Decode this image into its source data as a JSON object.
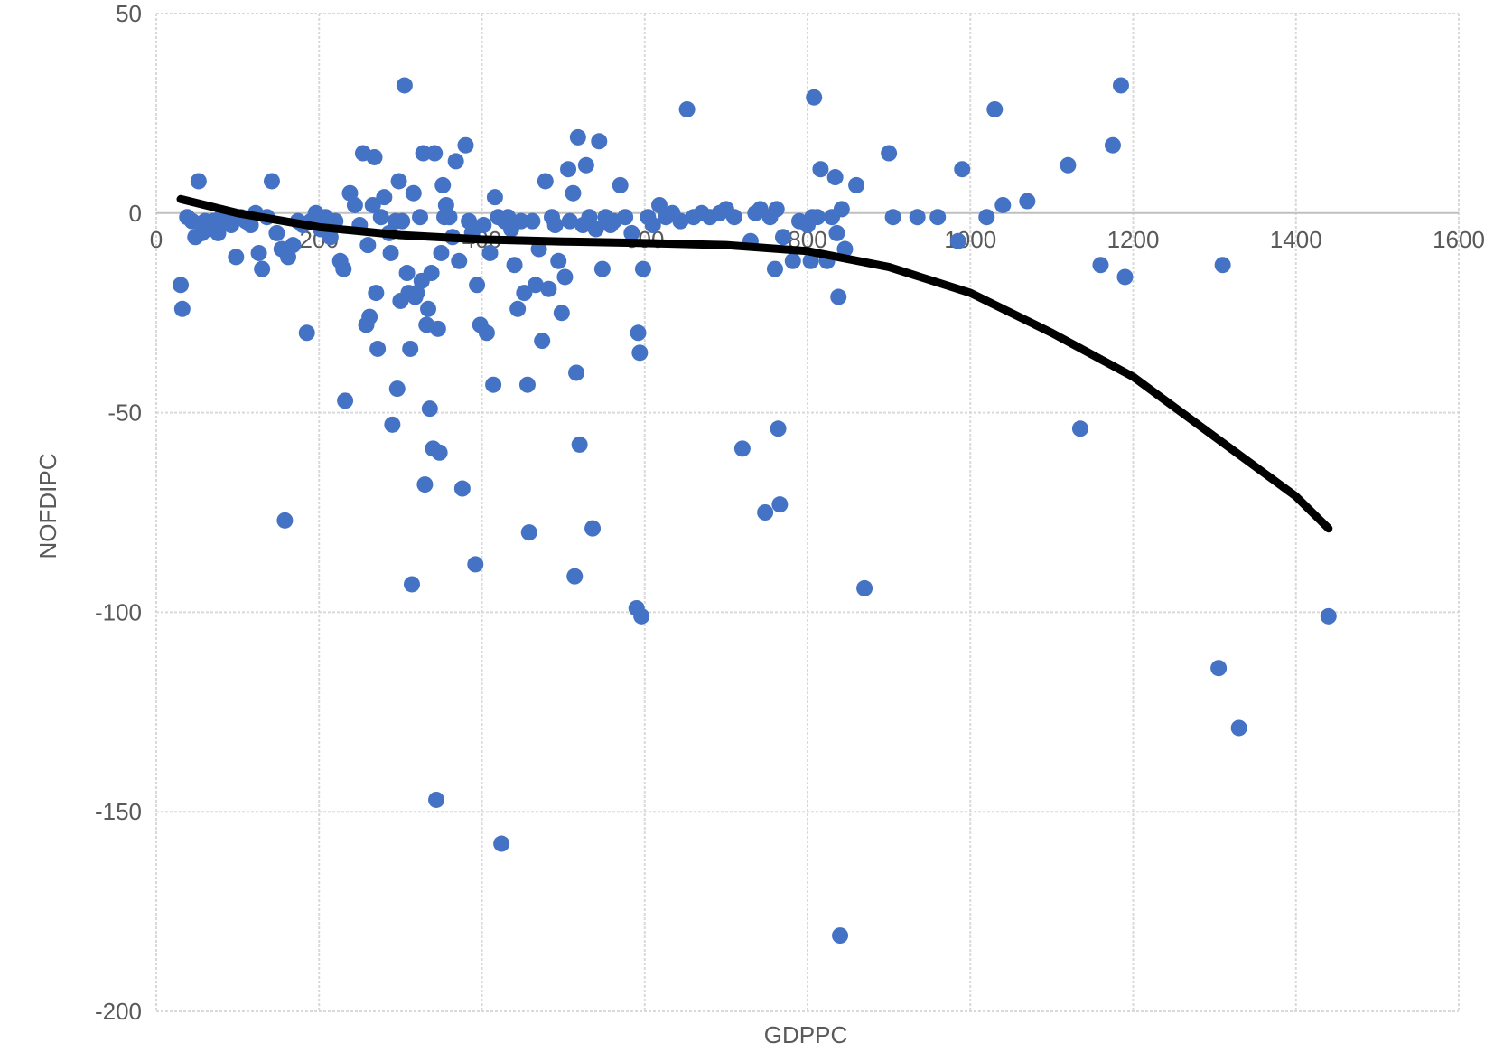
{
  "chart_data": {
    "type": "scatter",
    "title": "",
    "xlabel": "GDPPC",
    "ylabel": "NOFDIPC",
    "xlim": [
      0,
      1600
    ],
    "ylim": [
      -200,
      50
    ],
    "x_ticks": [
      0,
      200,
      400,
      600,
      800,
      1000,
      1200,
      1400,
      1600
    ],
    "y_ticks": [
      50,
      0,
      -50,
      -100,
      -150,
      -200
    ],
    "x_tick_labels": [
      "0",
      "200",
      "400",
      "600",
      "800",
      "1000",
      "1200",
      "1400",
      "1600"
    ],
    "y_tick_labels": [
      "50",
      "0",
      "-50",
      "-100",
      "-150",
      "-200"
    ],
    "grid": true,
    "legend": "none",
    "colors": {
      "points": "#4472c4",
      "trendline": "#000000",
      "grid": "#d9d9d9",
      "text": "#595959"
    },
    "series": [
      {
        "type": "scatter",
        "points": [
          [
            30,
            -18
          ],
          [
            32,
            -24
          ],
          [
            38,
            -1
          ],
          [
            44,
            -2
          ],
          [
            48,
            -6
          ],
          [
            52,
            8
          ],
          [
            56,
            -5
          ],
          [
            60,
            -2
          ],
          [
            64,
            -4
          ],
          [
            70,
            -2
          ],
          [
            76,
            -5
          ],
          [
            80,
            -1
          ],
          [
            86,
            -2
          ],
          [
            92,
            -3
          ],
          [
            98,
            -11
          ],
          [
            104,
            -1
          ],
          [
            110,
            -2
          ],
          [
            116,
            -3
          ],
          [
            122,
            0
          ],
          [
            126,
            -10
          ],
          [
            130,
            -14
          ],
          [
            136,
            -1
          ],
          [
            142,
            8
          ],
          [
            148,
            -5
          ],
          [
            154,
            -9
          ],
          [
            158,
            -77
          ],
          [
            162,
            -11
          ],
          [
            168,
            -8
          ],
          [
            174,
            -2
          ],
          [
            180,
            -3
          ],
          [
            185,
            -30
          ],
          [
            190,
            -2
          ],
          [
            196,
            0
          ],
          [
            202,
            -4
          ],
          [
            208,
            -1
          ],
          [
            214,
            -6
          ],
          [
            220,
            -2
          ],
          [
            226,
            -12
          ],
          [
            230,
            -14
          ],
          [
            232,
            -47
          ],
          [
            238,
            5
          ],
          [
            244,
            2
          ],
          [
            250,
            -3
          ],
          [
            254,
            15
          ],
          [
            258,
            -28
          ],
          [
            260,
            -8
          ],
          [
            262,
            -26
          ],
          [
            266,
            2
          ],
          [
            268,
            14
          ],
          [
            270,
            -20
          ],
          [
            272,
            -34
          ],
          [
            276,
            -1
          ],
          [
            280,
            4
          ],
          [
            286,
            -5
          ],
          [
            288,
            -10
          ],
          [
            290,
            -53
          ],
          [
            294,
            -2
          ],
          [
            296,
            -44
          ],
          [
            298,
            8
          ],
          [
            300,
            -22
          ],
          [
            302,
            -2
          ],
          [
            305,
            32
          ],
          [
            308,
            -15
          ],
          [
            310,
            -20
          ],
          [
            312,
            -34
          ],
          [
            314,
            -93
          ],
          [
            316,
            5
          ],
          [
            318,
            -21
          ],
          [
            320,
            -20
          ],
          [
            324,
            -1
          ],
          [
            326,
            -17
          ],
          [
            328,
            15
          ],
          [
            330,
            -68
          ],
          [
            332,
            -28
          ],
          [
            334,
            -24
          ],
          [
            336,
            -49
          ],
          [
            338,
            -15
          ],
          [
            340,
            -59
          ],
          [
            342,
            15
          ],
          [
            344,
            -147
          ],
          [
            346,
            -29
          ],
          [
            348,
            -60
          ],
          [
            350,
            -10
          ],
          [
            352,
            7
          ],
          [
            354,
            -1
          ],
          [
            356,
            2
          ],
          [
            360,
            -1
          ],
          [
            364,
            -6
          ],
          [
            368,
            13
          ],
          [
            372,
            -12
          ],
          [
            376,
            -69
          ],
          [
            380,
            17
          ],
          [
            384,
            -2
          ],
          [
            388,
            -5
          ],
          [
            392,
            -88
          ],
          [
            394,
            -18
          ],
          [
            398,
            -28
          ],
          [
            402,
            -3
          ],
          [
            406,
            -30
          ],
          [
            410,
            -10
          ],
          [
            414,
            -43
          ],
          [
            416,
            4
          ],
          [
            420,
            -1
          ],
          [
            424,
            -158
          ],
          [
            428,
            -2
          ],
          [
            432,
            -1
          ],
          [
            436,
            -4
          ],
          [
            440,
            -13
          ],
          [
            444,
            -24
          ],
          [
            448,
            -2
          ],
          [
            452,
            -20
          ],
          [
            456,
            -43
          ],
          [
            458,
            -80
          ],
          [
            462,
            -2
          ],
          [
            466,
            -18
          ],
          [
            470,
            -9
          ],
          [
            474,
            -32
          ],
          [
            478,
            8
          ],
          [
            482,
            -19
          ],
          [
            486,
            -1
          ],
          [
            490,
            -3
          ],
          [
            494,
            -12
          ],
          [
            498,
            -25
          ],
          [
            502,
            -16
          ],
          [
            506,
            11
          ],
          [
            508,
            -2
          ],
          [
            512,
            5
          ],
          [
            514,
            -91
          ],
          [
            516,
            -40
          ],
          [
            518,
            19
          ],
          [
            520,
            -58
          ],
          [
            524,
            -3
          ],
          [
            528,
            12
          ],
          [
            532,
            -1
          ],
          [
            536,
            -79
          ],
          [
            540,
            -4
          ],
          [
            544,
            18
          ],
          [
            548,
            -14
          ],
          [
            552,
            -1
          ],
          [
            558,
            -3
          ],
          [
            562,
            -2
          ],
          [
            570,
            7
          ],
          [
            576,
            -1
          ],
          [
            584,
            -5
          ],
          [
            590,
            -99
          ],
          [
            592,
            -30
          ],
          [
            594,
            -35
          ],
          [
            596,
            -101
          ],
          [
            598,
            -14
          ],
          [
            604,
            -1
          ],
          [
            610,
            -3
          ],
          [
            618,
            2
          ],
          [
            626,
            -1
          ],
          [
            634,
            0
          ],
          [
            644,
            -2
          ],
          [
            652,
            26
          ],
          [
            660,
            -1
          ],
          [
            670,
            0
          ],
          [
            680,
            -1
          ],
          [
            692,
            0
          ],
          [
            700,
            1
          ],
          [
            710,
            -1
          ],
          [
            720,
            -59
          ],
          [
            730,
            -7
          ],
          [
            736,
            0
          ],
          [
            742,
            1
          ],
          [
            748,
            -75
          ],
          [
            754,
            -1
          ],
          [
            760,
            -14
          ],
          [
            762,
            1
          ],
          [
            764,
            -54
          ],
          [
            766,
            -73
          ],
          [
            770,
            -6
          ],
          [
            782,
            -12
          ],
          [
            790,
            -2
          ],
          [
            800,
            -3
          ],
          [
            804,
            -12
          ],
          [
            806,
            -1
          ],
          [
            808,
            29
          ],
          [
            812,
            -1
          ],
          [
            816,
            11
          ],
          [
            824,
            -12
          ],
          [
            830,
            -1
          ],
          [
            834,
            9
          ],
          [
            836,
            -5
          ],
          [
            838,
            -21
          ],
          [
            840,
            -181
          ],
          [
            842,
            1
          ],
          [
            846,
            -9
          ],
          [
            860,
            7
          ],
          [
            870,
            -94
          ],
          [
            900,
            15
          ],
          [
            905,
            -1
          ],
          [
            935,
            -1
          ],
          [
            960,
            -1
          ],
          [
            985,
            -7
          ],
          [
            990,
            11
          ],
          [
            1020,
            -1
          ],
          [
            1030,
            26
          ],
          [
            1040,
            2
          ],
          [
            1070,
            3
          ],
          [
            1120,
            12
          ],
          [
            1135,
            -54
          ],
          [
            1160,
            -13
          ],
          [
            1175,
            17
          ],
          [
            1185,
            32
          ],
          [
            1190,
            -16
          ],
          [
            1305,
            -114
          ],
          [
            1310,
            -13
          ],
          [
            1330,
            -129
          ],
          [
            1440,
            -101
          ]
        ]
      },
      {
        "type": "line",
        "name": "",
        "points": [
          [
            30,
            3.5
          ],
          [
            100,
            0
          ],
          [
            200,
            -3.5
          ],
          [
            300,
            -5.5
          ],
          [
            400,
            -6.6
          ],
          [
            500,
            -7.1
          ],
          [
            600,
            -7.5
          ],
          [
            700,
            -8.0
          ],
          [
            800,
            -9.5
          ],
          [
            900,
            -13.5
          ],
          [
            1000,
            -20
          ],
          [
            1100,
            -30
          ],
          [
            1200,
            -41
          ],
          [
            1300,
            -56
          ],
          [
            1400,
            -71
          ],
          [
            1440,
            -79
          ]
        ]
      }
    ]
  }
}
